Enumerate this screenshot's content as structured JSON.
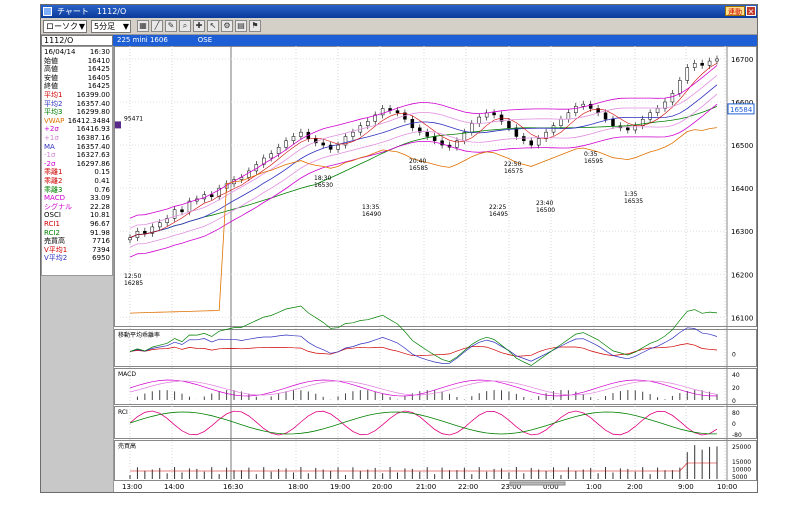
{
  "window": {
    "title": "チャート　1112/O",
    "link_button": "連動",
    "close_button": "×"
  },
  "toolbar": {
    "chart_type": "ローソク",
    "interval": "5分足",
    "buttons": [
      "grid-icon",
      "line-icon",
      "pen-icon",
      "zoom-icon",
      "cross-icon",
      "arrow-icon",
      "settings-icon",
      "print-icon",
      "mark-icon"
    ]
  },
  "symbol": {
    "code": "1112/O",
    "instrument": "225 mini 1606",
    "exchange": "OSE"
  },
  "data_panel": [
    {
      "label": "16/04/14",
      "value": "16:30",
      "color": "#000000"
    },
    {
      "label": "始値",
      "value": "16410",
      "color": "#000000"
    },
    {
      "label": "高値",
      "value": "16425",
      "color": "#000000"
    },
    {
      "label": "安値",
      "value": "16405",
      "color": "#000000"
    },
    {
      "label": "終値",
      "value": "16425",
      "color": "#000000"
    },
    {
      "label": "平均1",
      "value": "16399.00",
      "color": "#d00000"
    },
    {
      "label": "平均2",
      "value": "16357.40",
      "color": "#3030c0"
    },
    {
      "label": "平均3",
      "value": "16299.80",
      "color": "#008000"
    },
    {
      "label": "VWAP",
      "value": "16412.3484",
      "color": "#e07000"
    },
    {
      "label": "+2σ",
      "value": "16416.93",
      "color": "#d000d0"
    },
    {
      "label": "+1σ",
      "value": "16387.16",
      "color": "#d080d0"
    },
    {
      "label": "MA",
      "value": "16357.40",
      "color": "#3030c0"
    },
    {
      "label": "-1σ",
      "value": "16327.63",
      "color": "#d080d0"
    },
    {
      "label": "-2σ",
      "value": "16297.86",
      "color": "#d000d0"
    },
    {
      "label": "乖離1",
      "value": "0.15",
      "color": "#d00000"
    },
    {
      "label": "乖離2",
      "value": "0.41",
      "color": "#d00000"
    },
    {
      "label": "乖離3",
      "value": "0.76",
      "color": "#008000"
    },
    {
      "label": "MACD",
      "value": "33.09",
      "color": "#d000d0"
    },
    {
      "label": "シグナル",
      "value": "22.28",
      "color": "#d000d0"
    },
    {
      "label": "OSCI",
      "value": "10.81",
      "color": "#000000"
    },
    {
      "label": "RCI1",
      "value": "96.67",
      "color": "#d00000"
    },
    {
      "label": "RCI2",
      "value": "91.98",
      "color": "#008000"
    },
    {
      "label": "売買高",
      "value": "7716",
      "color": "#000000"
    },
    {
      "label": "V平均1",
      "value": "7394",
      "color": "#d00000"
    },
    {
      "label": "V平均2",
      "value": "6950",
      "color": "#3030c0"
    }
  ],
  "chart_data": [
    {
      "type": "candlestick",
      "ylabels": [
        "16700",
        "16600",
        "16500",
        "16400",
        "16300",
        "16200",
        "16100"
      ],
      "ylim": [
        16080,
        16730
      ],
      "current_price": "16584",
      "annotations": [
        {
          "time": "12:50",
          "price": "16285"
        },
        {
          "time": "18:30",
          "price": "16530"
        },
        {
          "time": "13:35",
          "price": "16490"
        },
        {
          "time": "20:40",
          "price": "16585"
        },
        {
          "time": "22:50",
          "price": "16575"
        },
        {
          "time": "22:25",
          "price": "16495"
        },
        {
          "time": "23:40",
          "price": "16500"
        },
        {
          "time": "0:35",
          "price": "16595"
        },
        {
          "time": "1:35",
          "price": "16535"
        }
      ],
      "volume_profile_label": "95471"
    },
    {
      "type": "line",
      "title": "移動平均乖離率",
      "ylabels": [
        "0"
      ]
    },
    {
      "type": "line",
      "title": "MACD",
      "ylabels": [
        "40",
        "20",
        "0"
      ]
    },
    {
      "type": "line",
      "title": "RCI",
      "ylabels": [
        "80",
        "0",
        "-80"
      ]
    },
    {
      "type": "bar",
      "title": "売買高",
      "ylabels": [
        "25000",
        "15000",
        "10000",
        "5000"
      ]
    }
  ],
  "xaxis": {
    "labels": [
      "13:00",
      "14:00",
      "16:30",
      "18:00",
      "19:00",
      "20:00",
      "21:00",
      "22:00",
      "23:00",
      "0:00",
      "1:00",
      "2:00",
      "9:00",
      "10:00"
    ]
  }
}
